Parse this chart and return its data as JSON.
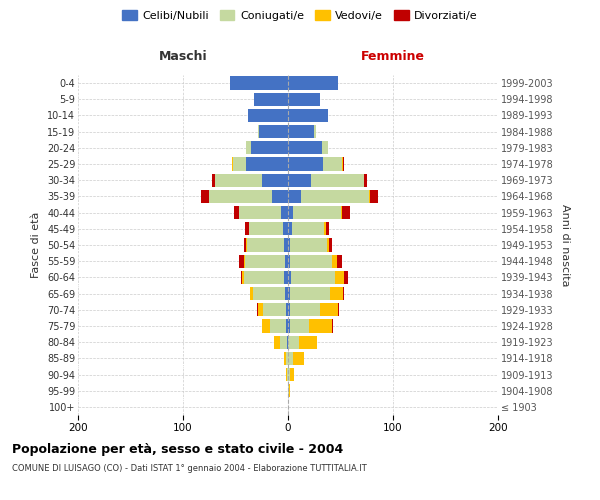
{
  "age_groups": [
    "100+",
    "95-99",
    "90-94",
    "85-89",
    "80-84",
    "75-79",
    "70-74",
    "65-69",
    "60-64",
    "55-59",
    "50-54",
    "45-49",
    "40-44",
    "35-39",
    "30-34",
    "25-29",
    "20-24",
    "15-19",
    "10-14",
    "5-9",
    "0-4"
  ],
  "birth_years": [
    "≤ 1903",
    "1904-1908",
    "1909-1913",
    "1914-1918",
    "1919-1923",
    "1924-1928",
    "1929-1933",
    "1934-1938",
    "1939-1943",
    "1944-1948",
    "1949-1953",
    "1954-1958",
    "1959-1963",
    "1964-1968",
    "1969-1973",
    "1974-1978",
    "1979-1983",
    "1984-1988",
    "1989-1993",
    "1994-1998",
    "1999-2003"
  ],
  "colors": {
    "celibe": "#4472c4",
    "coniugato": "#c5d9a0",
    "vedovo": "#ffc000",
    "divorziato": "#c00000"
  },
  "males": {
    "celibe": [
      0,
      0,
      0,
      0,
      1,
      2,
      2,
      3,
      4,
      3,
      4,
      5,
      7,
      15,
      25,
      40,
      35,
      28,
      38,
      32,
      55
    ],
    "coniugato": [
      0,
      0,
      1,
      2,
      7,
      15,
      22,
      30,
      38,
      38,
      35,
      32,
      40,
      60,
      45,
      12,
      5,
      1,
      0,
      0,
      0
    ],
    "vedovo": [
      0,
      0,
      1,
      2,
      5,
      8,
      5,
      3,
      2,
      1,
      1,
      0,
      0,
      0,
      0,
      1,
      0,
      0,
      0,
      0,
      0
    ],
    "divorziato": [
      0,
      0,
      0,
      0,
      0,
      0,
      1,
      0,
      1,
      5,
      2,
      4,
      4,
      8,
      2,
      0,
      0,
      0,
      0,
      0,
      0
    ]
  },
  "females": {
    "nubile": [
      0,
      0,
      0,
      0,
      0,
      2,
      2,
      2,
      3,
      2,
      2,
      4,
      5,
      12,
      22,
      33,
      32,
      25,
      38,
      30,
      48
    ],
    "coniugata": [
      0,
      1,
      2,
      5,
      10,
      18,
      28,
      38,
      42,
      40,
      35,
      30,
      45,
      65,
      50,
      18,
      6,
      2,
      0,
      0,
      0
    ],
    "vedova": [
      0,
      1,
      4,
      10,
      18,
      22,
      18,
      12,
      8,
      5,
      2,
      2,
      1,
      1,
      0,
      1,
      0,
      0,
      0,
      0,
      0
    ],
    "divorziata": [
      0,
      0,
      0,
      0,
      0,
      1,
      1,
      1,
      4,
      4,
      3,
      3,
      8,
      8,
      3,
      1,
      0,
      0,
      0,
      0,
      0
    ]
  },
  "xlim": 200,
  "title": "Popolazione per età, sesso e stato civile - 2004",
  "subtitle": "COMUNE DI LUISAGO (CO) - Dati ISTAT 1° gennaio 2004 - Elaborazione TUTTITALIA.IT",
  "ylabel_left": "Fasce di età",
  "ylabel_right": "Anni di nascita",
  "header_maschi": "Maschi",
  "header_femmine": "Femmine",
  "legend_labels": [
    "Celibi/Nubili",
    "Coniugati/e",
    "Vedovi/e",
    "Divorziati/e"
  ],
  "legend_colors": [
    "#4472c4",
    "#c5d9a0",
    "#ffc000",
    "#c00000"
  ]
}
